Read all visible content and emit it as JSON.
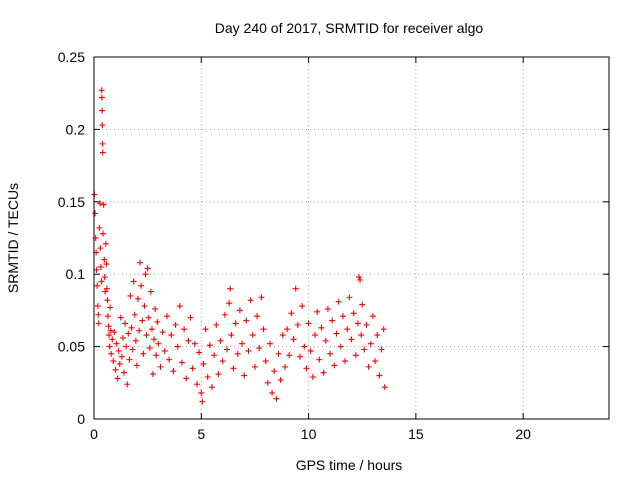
{
  "chart_data": {
    "type": "scatter",
    "title": "Day 240 of 2017, SRMTID for receiver algo",
    "xlabel": "GPS time / hours",
    "ylabel": "SRMTID / TECUs",
    "xlim": [
      0,
      24
    ],
    "ylim": [
      0,
      0.25
    ],
    "xticks": [
      0,
      5,
      10,
      15,
      20
    ],
    "yticks": [
      0,
      0.05,
      0.1,
      0.15,
      0.2,
      0.25
    ],
    "xtick_labels": [
      "0",
      "5",
      "10",
      "15",
      "20"
    ],
    "ytick_labels": [
      "0",
      "0.05",
      "0.1",
      "0.15",
      "0.2",
      "0.25"
    ],
    "grid": true,
    "marker": "+",
    "color": "#ff0000",
    "series": [
      {
        "name": "SRMTID",
        "points": [
          [
            0.02,
            0.155
          ],
          [
            0.05,
            0.142
          ],
          [
            0.08,
            0.125
          ],
          [
            0.1,
            0.115
          ],
          [
            0.12,
            0.103
          ],
          [
            0.15,
            0.092
          ],
          [
            0.18,
            0.078
          ],
          [
            0.2,
            0.072
          ],
          [
            0.22,
            0.066
          ],
          [
            0.25,
            0.132
          ],
          [
            0.28,
            0.149
          ],
          [
            0.3,
            0.118
          ],
          [
            0.32,
            0.105
          ],
          [
            0.35,
            0.095
          ],
          [
            0.36,
            0.227
          ],
          [
            0.37,
            0.222
          ],
          [
            0.38,
            0.213
          ],
          [
            0.39,
            0.203
          ],
          [
            0.4,
            0.19
          ],
          [
            0.41,
            0.184
          ],
          [
            0.42,
            0.128
          ],
          [
            0.45,
            0.148
          ],
          [
            0.48,
            0.11
          ],
          [
            0.5,
            0.098
          ],
          [
            0.52,
            0.088
          ],
          [
            0.55,
            0.121
          ],
          [
            0.58,
            0.107
          ],
          [
            0.6,
            0.09
          ],
          [
            0.63,
            0.082
          ],
          [
            0.65,
            0.071
          ],
          [
            0.68,
            0.064
          ],
          [
            0.7,
            0.058
          ],
          [
            0.73,
            0.05
          ],
          [
            0.75,
            0.077
          ],
          [
            0.78,
            0.061
          ],
          [
            0.8,
            0.045
          ],
          [
            0.85,
            0.055
          ],
          [
            0.9,
            0.04
          ],
          [
            0.95,
            0.06
          ],
          [
            1.0,
            0.034
          ],
          [
            1.05,
            0.052
          ],
          [
            1.1,
            0.028
          ],
          [
            1.15,
            0.047
          ],
          [
            1.2,
            0.038
          ],
          [
            1.25,
            0.07
          ],
          [
            1.3,
            0.043
          ],
          [
            1.35,
            0.056
          ],
          [
            1.4,
            0.032
          ],
          [
            1.45,
            0.066
          ],
          [
            1.5,
            0.05
          ],
          [
            1.55,
            0.024
          ],
          [
            1.6,
            0.059
          ],
          [
            1.65,
            0.041
          ],
          [
            1.7,
            0.085
          ],
          [
            1.75,
            0.063
          ],
          [
            1.8,
            0.048
          ],
          [
            1.85,
            0.095
          ],
          [
            1.9,
            0.072
          ],
          [
            1.95,
            0.054
          ],
          [
            2.0,
            0.037
          ],
          [
            2.05,
            0.083
          ],
          [
            2.1,
            0.061
          ],
          [
            2.15,
            0.108
          ],
          [
            2.2,
            0.092
          ],
          [
            2.25,
            0.068
          ],
          [
            2.3,
            0.045
          ],
          [
            2.35,
            0.078
          ],
          [
            2.4,
            0.1
          ],
          [
            2.45,
            0.058
          ],
          [
            2.5,
            0.104
          ],
          [
            2.55,
            0.07
          ],
          [
            2.6,
            0.049
          ],
          [
            2.65,
            0.088
          ],
          [
            2.7,
            0.062
          ],
          [
            2.75,
            0.031
          ],
          [
            2.8,
            0.055
          ],
          [
            2.85,
            0.076
          ],
          [
            2.9,
            0.044
          ],
          [
            2.95,
            0.067
          ],
          [
            3.0,
            0.052
          ],
          [
            3.1,
            0.036
          ],
          [
            3.2,
            0.06
          ],
          [
            3.3,
            0.047
          ],
          [
            3.4,
            0.071
          ],
          [
            3.5,
            0.041
          ],
          [
            3.6,
            0.058
          ],
          [
            3.7,
            0.033
          ],
          [
            3.8,
            0.065
          ],
          [
            3.9,
            0.05
          ],
          [
            4.0,
            0.078
          ],
          [
            4.1,
            0.039
          ],
          [
            4.2,
            0.062
          ],
          [
            4.3,
            0.028
          ],
          [
            4.4,
            0.054
          ],
          [
            4.5,
            0.07
          ],
          [
            4.6,
            0.035
          ],
          [
            4.7,
            0.052
          ],
          [
            4.8,
            0.024
          ],
          [
            4.9,
            0.046
          ],
          [
            5.0,
            0.018
          ],
          [
            5.05,
            0.012
          ],
          [
            5.1,
            0.038
          ],
          [
            5.2,
            0.062
          ],
          [
            5.3,
            0.029
          ],
          [
            5.4,
            0.051
          ],
          [
            5.5,
            0.022
          ],
          [
            5.6,
            0.044
          ],
          [
            5.7,
            0.065
          ],
          [
            5.8,
            0.031
          ],
          [
            5.9,
            0.054
          ],
          [
            6.0,
            0.04
          ],
          [
            6.1,
            0.072
          ],
          [
            6.2,
            0.048
          ],
          [
            6.3,
            0.08
          ],
          [
            6.35,
            0.09
          ],
          [
            6.4,
            0.058
          ],
          [
            6.5,
            0.035
          ],
          [
            6.6,
            0.066
          ],
          [
            6.7,
            0.045
          ],
          [
            6.8,
            0.075
          ],
          [
            6.9,
            0.052
          ],
          [
            7.0,
            0.03
          ],
          [
            7.1,
            0.068
          ],
          [
            7.2,
            0.047
          ],
          [
            7.3,
            0.082
          ],
          [
            7.4,
            0.058
          ],
          [
            7.5,
            0.036
          ],
          [
            7.6,
            0.071
          ],
          [
            7.7,
            0.049
          ],
          [
            7.8,
            0.084
          ],
          [
            7.9,
            0.062
          ],
          [
            8.0,
            0.04
          ],
          [
            8.1,
            0.025
          ],
          [
            8.2,
            0.052
          ],
          [
            8.3,
            0.018
          ],
          [
            8.4,
            0.033
          ],
          [
            8.5,
            0.014
          ],
          [
            8.6,
            0.045
          ],
          [
            8.7,
            0.027
          ],
          [
            8.8,
            0.058
          ],
          [
            8.9,
            0.036
          ],
          [
            9.0,
            0.062
          ],
          [
            9.1,
            0.044
          ],
          [
            9.2,
            0.073
          ],
          [
            9.3,
            0.055
          ],
          [
            9.4,
            0.09
          ],
          [
            9.5,
            0.065
          ],
          [
            9.6,
            0.043
          ],
          [
            9.7,
            0.078
          ],
          [
            9.8,
            0.05
          ],
          [
            9.9,
            0.035
          ],
          [
            10.0,
            0.066
          ],
          [
            10.1,
            0.047
          ],
          [
            10.2,
            0.029
          ],
          [
            10.3,
            0.058
          ],
          [
            10.4,
            0.074
          ],
          [
            10.5,
            0.041
          ],
          [
            10.6,
            0.063
          ],
          [
            10.7,
            0.032
          ],
          [
            10.8,
            0.054
          ],
          [
            10.9,
            0.076
          ],
          [
            11.0,
            0.045
          ],
          [
            11.1,
            0.068
          ],
          [
            11.2,
            0.037
          ],
          [
            11.3,
            0.059
          ],
          [
            11.4,
            0.081
          ],
          [
            11.5,
            0.05
          ],
          [
            11.6,
            0.071
          ],
          [
            11.7,
            0.04
          ],
          [
            11.8,
            0.062
          ],
          [
            11.9,
            0.084
          ],
          [
            12.0,
            0.055
          ],
          [
            12.1,
            0.073
          ],
          [
            12.2,
            0.044
          ],
          [
            12.3,
            0.066
          ],
          [
            12.35,
            0.098
          ],
          [
            12.4,
            0.096
          ],
          [
            12.45,
            0.058
          ],
          [
            12.5,
            0.079
          ],
          [
            12.6,
            0.048
          ],
          [
            12.7,
            0.065
          ],
          [
            12.8,
            0.036
          ],
          [
            12.9,
            0.052
          ],
          [
            13.0,
            0.071
          ],
          [
            13.1,
            0.04
          ],
          [
            13.2,
            0.058
          ],
          [
            13.3,
            0.03
          ],
          [
            13.4,
            0.048
          ],
          [
            13.5,
            0.062
          ],
          [
            13.55,
            0.022
          ]
        ]
      }
    ]
  }
}
